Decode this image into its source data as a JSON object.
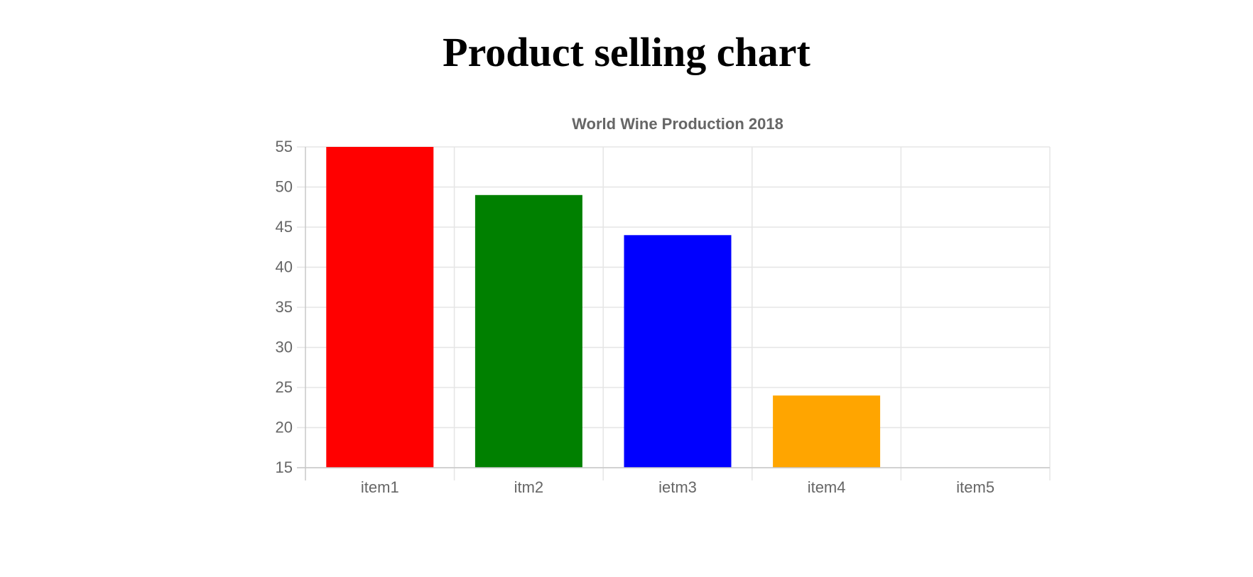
{
  "page": {
    "title": "Product selling chart"
  },
  "chart_data": {
    "type": "bar",
    "title": "World Wine Production 2018",
    "xlabel": "",
    "ylabel": "",
    "categories": [
      "item1",
      "itm2",
      "ietm3",
      "item4",
      "item5"
    ],
    "values": [
      55,
      49,
      44,
      24,
      15
    ],
    "colors": [
      "#ff0000",
      "#008000",
      "#0000ff",
      "#ffa500",
      "#a52a2a"
    ],
    "ylim": [
      15,
      55
    ],
    "yticks": [
      15,
      20,
      25,
      30,
      35,
      40,
      45,
      50,
      55
    ],
    "grid": true,
    "legend": "none",
    "colors_style": {
      "grid": "#e5e5e5",
      "axis": "#c8c8c8",
      "tick_text": "#666666",
      "title_text": "#666666"
    }
  }
}
